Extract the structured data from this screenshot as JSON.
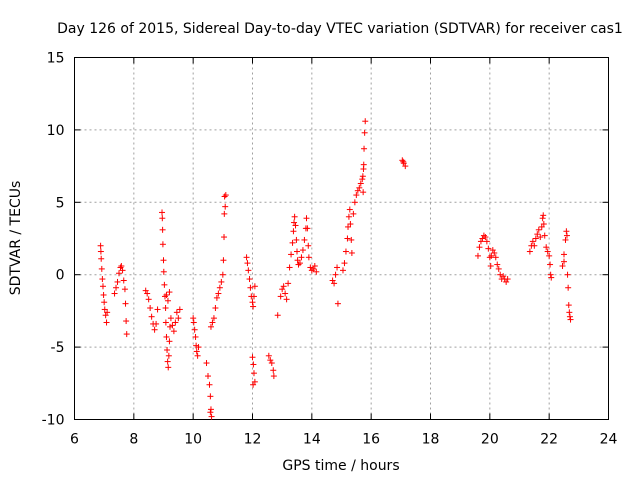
{
  "chart_data": {
    "type": "scatter",
    "title": "Day 126 of 2015, Sidereal Day-to-day VTEC variation (SDTVAR) for receiver cas1",
    "xlabel": "GPS time / hours",
    "ylabel": "SDTVAR / TECUs",
    "xlim": [
      6,
      24
    ],
    "ylim": [
      -10,
      15
    ],
    "xticks": [
      6,
      8,
      10,
      12,
      14,
      16,
      18,
      20,
      22,
      24
    ],
    "yticks": [
      -10,
      -5,
      0,
      5,
      10,
      15
    ],
    "xtick_labels": [
      "6",
      "8",
      "10",
      "12",
      "14",
      "16",
      "18",
      "20",
      "22",
      "24"
    ],
    "ytick_labels": [
      "-10",
      "-5",
      "0",
      "5",
      "10",
      "15"
    ],
    "grid": true,
    "marker": "+",
    "color": "#ff0000",
    "series": [
      {
        "name": "SDTVAR",
        "points": [
          [
            6.88,
            2.0
          ],
          [
            6.89,
            1.6
          ],
          [
            6.9,
            1.1
          ],
          [
            6.92,
            0.4
          ],
          [
            6.94,
            -0.3
          ],
          [
            6.96,
            -0.8
          ],
          [
            6.98,
            -1.4
          ],
          [
            7.0,
            -1.9
          ],
          [
            7.02,
            -2.4
          ],
          [
            7.05,
            -2.8
          ],
          [
            7.08,
            -3.3
          ],
          [
            7.1,
            -2.6
          ],
          [
            7.35,
            -1.3
          ],
          [
            7.4,
            -0.9
          ],
          [
            7.45,
            -0.5
          ],
          [
            7.5,
            0.1
          ],
          [
            7.55,
            0.5
          ],
          [
            7.58,
            0.6
          ],
          [
            7.62,
            0.3
          ],
          [
            7.66,
            -0.4
          ],
          [
            7.7,
            -1.0
          ],
          [
            7.72,
            -2.0
          ],
          [
            7.74,
            -3.2
          ],
          [
            7.76,
            -4.1
          ],
          [
            8.4,
            -1.1
          ],
          [
            8.45,
            -1.3
          ],
          [
            8.5,
            -1.7
          ],
          [
            8.55,
            -2.3
          ],
          [
            8.6,
            -2.9
          ],
          [
            8.65,
            -3.4
          ],
          [
            8.7,
            -3.8
          ],
          [
            8.75,
            -3.4
          ],
          [
            8.8,
            -2.4
          ],
          [
            8.95,
            4.3
          ],
          [
            8.96,
            3.9
          ],
          [
            8.97,
            3.1
          ],
          [
            8.98,
            2.1
          ],
          [
            9.0,
            1.0
          ],
          [
            9.01,
            0.2
          ],
          [
            9.03,
            -0.7
          ],
          [
            9.05,
            -1.5
          ],
          [
            9.07,
            -2.3
          ],
          [
            9.08,
            -3.3
          ],
          [
            9.1,
            -4.3
          ],
          [
            9.12,
            -5.2
          ],
          [
            9.14,
            -6.0
          ],
          [
            9.16,
            -6.4
          ],
          [
            9.18,
            -5.6
          ],
          [
            9.2,
            -4.6
          ],
          [
            9.22,
            -3.6
          ],
          [
            9.25,
            -3.0
          ],
          [
            9.3,
            -3.5
          ],
          [
            9.35,
            -3.9
          ],
          [
            9.4,
            -3.3
          ],
          [
            9.45,
            -2.6
          ],
          [
            9.5,
            -3.0
          ],
          [
            9.55,
            -2.4
          ],
          [
            9.1,
            -1.4
          ],
          [
            9.15,
            -1.8
          ],
          [
            9.2,
            -1.2
          ],
          [
            10.0,
            -3.0
          ],
          [
            10.02,
            -3.3
          ],
          [
            10.05,
            -3.8
          ],
          [
            10.08,
            -4.3
          ],
          [
            10.1,
            -4.9
          ],
          [
            10.12,
            -5.3
          ],
          [
            10.15,
            -5.6
          ],
          [
            10.18,
            -5.0
          ],
          [
            10.45,
            -6.1
          ],
          [
            10.5,
            -7.0
          ],
          [
            10.55,
            -7.6
          ],
          [
            10.58,
            -8.4
          ],
          [
            10.6,
            -9.3
          ],
          [
            10.62,
            -9.8
          ],
          [
            10.58,
            -9.5
          ],
          [
            10.6,
            -3.6
          ],
          [
            10.65,
            -3.3
          ],
          [
            10.7,
            -3.0
          ],
          [
            10.75,
            -2.3
          ],
          [
            10.8,
            -1.6
          ],
          [
            10.85,
            -1.3
          ],
          [
            10.9,
            -0.9
          ],
          [
            10.95,
            -0.5
          ],
          [
            11.0,
            0.0
          ],
          [
            11.02,
            1.0
          ],
          [
            11.04,
            2.6
          ],
          [
            11.05,
            4.2
          ],
          [
            11.06,
            5.4
          ],
          [
            11.1,
            5.5
          ],
          [
            11.08,
            4.7
          ],
          [
            11.8,
            1.2
          ],
          [
            11.83,
            0.8
          ],
          [
            11.86,
            0.3
          ],
          [
            11.9,
            -0.3
          ],
          [
            11.93,
            -0.9
          ],
          [
            11.96,
            -1.5
          ],
          [
            12.0,
            -1.9
          ],
          [
            12.02,
            -2.2
          ],
          [
            12.05,
            -1.5
          ],
          [
            12.08,
            -0.8
          ],
          [
            12.0,
            -5.7
          ],
          [
            12.03,
            -6.2
          ],
          [
            12.05,
            -6.8
          ],
          [
            12.08,
            -7.4
          ],
          [
            12.02,
            -7.6
          ],
          [
            12.55,
            -5.6
          ],
          [
            12.6,
            -5.9
          ],
          [
            12.65,
            -6.1
          ],
          [
            12.7,
            -6.6
          ],
          [
            12.72,
            -7.0
          ],
          [
            12.85,
            -2.8
          ],
          [
            12.95,
            -1.5
          ],
          [
            13.0,
            -1.0
          ],
          [
            13.05,
            -0.8
          ],
          [
            13.1,
            -1.3
          ],
          [
            13.15,
            -1.7
          ],
          [
            13.2,
            -0.6
          ],
          [
            13.25,
            0.5
          ],
          [
            13.3,
            1.4
          ],
          [
            13.35,
            2.2
          ],
          [
            13.38,
            3.0
          ],
          [
            13.4,
            3.6
          ],
          [
            13.42,
            4.0
          ],
          [
            13.45,
            3.4
          ],
          [
            13.48,
            2.4
          ],
          [
            13.5,
            1.6
          ],
          [
            13.52,
            1.0
          ],
          [
            13.55,
            0.7
          ],
          [
            13.6,
            0.8
          ],
          [
            13.65,
            1.2
          ],
          [
            13.7,
            1.7
          ],
          [
            13.75,
            2.4
          ],
          [
            13.8,
            3.2
          ],
          [
            13.82,
            3.9
          ],
          [
            13.85,
            3.2
          ],
          [
            13.88,
            2.0
          ],
          [
            13.9,
            1.2
          ],
          [
            13.95,
            0.5
          ],
          [
            14.0,
            0.3
          ],
          [
            14.05,
            0.4
          ],
          [
            14.1,
            0.6
          ],
          [
            14.15,
            0.2
          ],
          [
            14.7,
            -0.4
          ],
          [
            14.75,
            -0.6
          ],
          [
            14.8,
            0.0
          ],
          [
            14.85,
            0.5
          ],
          [
            14.88,
            -2.0
          ],
          [
            15.05,
            0.3
          ],
          [
            15.1,
            0.8
          ],
          [
            15.15,
            1.6
          ],
          [
            15.2,
            2.5
          ],
          [
            15.22,
            3.3
          ],
          [
            15.25,
            4.0
          ],
          [
            15.28,
            4.5
          ],
          [
            15.3,
            3.5
          ],
          [
            15.33,
            2.4
          ],
          [
            15.35,
            1.5
          ],
          [
            15.4,
            4.2
          ],
          [
            15.45,
            5.0
          ],
          [
            15.5,
            5.5
          ],
          [
            15.55,
            5.8
          ],
          [
            15.6,
            6.0
          ],
          [
            15.65,
            6.3
          ],
          [
            15.7,
            6.6
          ],
          [
            15.72,
            6.8
          ],
          [
            15.74,
            7.3
          ],
          [
            15.76,
            8.7
          ],
          [
            15.78,
            9.8
          ],
          [
            15.8,
            10.6
          ],
          [
            15.73,
            5.7
          ],
          [
            15.75,
            7.6
          ],
          [
            17.05,
            7.9
          ],
          [
            17.1,
            7.7
          ],
          [
            17.15,
            7.5
          ],
          [
            17.08,
            7.8
          ],
          [
            19.6,
            1.3
          ],
          [
            19.65,
            1.9
          ],
          [
            19.7,
            2.3
          ],
          [
            19.75,
            2.5
          ],
          [
            19.8,
            2.7
          ],
          [
            19.85,
            2.6
          ],
          [
            19.9,
            2.3
          ],
          [
            19.95,
            1.8
          ],
          [
            20.0,
            1.2
          ],
          [
            20.03,
            0.6
          ],
          [
            20.05,
            1.3
          ],
          [
            20.1,
            1.7
          ],
          [
            20.15,
            1.5
          ],
          [
            20.2,
            1.2
          ],
          [
            20.25,
            0.7
          ],
          [
            20.3,
            0.4
          ],
          [
            20.35,
            0.0
          ],
          [
            20.4,
            -0.3
          ],
          [
            20.45,
            -0.1
          ],
          [
            20.5,
            -0.3
          ],
          [
            20.55,
            -0.5
          ],
          [
            20.6,
            -0.3
          ],
          [
            21.35,
            1.6
          ],
          [
            21.4,
            2.0
          ],
          [
            21.45,
            2.3
          ],
          [
            21.5,
            2.0
          ],
          [
            21.55,
            2.5
          ],
          [
            21.6,
            2.8
          ],
          [
            21.65,
            3.1
          ],
          [
            21.7,
            2.6
          ],
          [
            21.75,
            3.3
          ],
          [
            21.78,
            3.9
          ],
          [
            21.8,
            4.1
          ],
          [
            21.82,
            3.5
          ],
          [
            21.85,
            2.7
          ],
          [
            21.9,
            1.9
          ],
          [
            21.95,
            1.6
          ],
          [
            22.0,
            1.3
          ],
          [
            22.03,
            0.7
          ],
          [
            22.05,
            0.0
          ],
          [
            22.07,
            -0.2
          ],
          [
            22.45,
            0.6
          ],
          [
            22.5,
            1.4
          ],
          [
            22.55,
            2.4
          ],
          [
            22.58,
            3.0
          ],
          [
            22.6,
            2.7
          ],
          [
            22.62,
            0.0
          ],
          [
            22.64,
            -0.9
          ],
          [
            22.66,
            -2.1
          ],
          [
            22.68,
            -2.6
          ],
          [
            22.7,
            -2.9
          ],
          [
            22.72,
            -3.1
          ],
          [
            22.5,
            0.9
          ]
        ]
      }
    ]
  }
}
